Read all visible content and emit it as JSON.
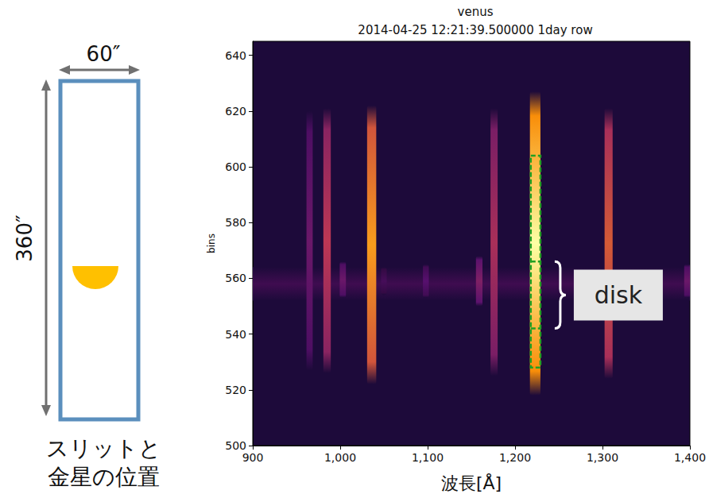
{
  "diagram": {
    "slit_width_label": "60″",
    "slit_height_label": "360″",
    "caption": [
      "スリットと",
      "金星の位置"
    ]
  },
  "chart_data": {
    "type": "heatmap",
    "title": "venus",
    "subtitle": "2014-04-25 12:21:39.500000 1day row",
    "x_label": "波長[Å]",
    "y_label": "bins",
    "xlim": [
      900,
      1400
    ],
    "xticks": [
      900,
      1000,
      1100,
      1200,
      1300,
      1400
    ],
    "ylim": [
      500,
      645
    ],
    "yticks": [
      500,
      520,
      540,
      560,
      580,
      600,
      620,
      640
    ],
    "grid": false,
    "lines": [
      {
        "wavelength": 965,
        "bins": [
          527,
          620
        ],
        "intensity": 0.3
      },
      {
        "wavelength": 985,
        "bins": [
          526,
          621
        ],
        "intensity": 0.5
      },
      {
        "wavelength": 1003,
        "bins": [
          553,
          566
        ],
        "intensity": 0.3
      },
      {
        "wavelength": 1036,
        "bins": [
          522,
          622
        ],
        "intensity": 0.78
      },
      {
        "wavelength": 1050,
        "bins": [
          554,
          564
        ],
        "intensity": 0.2
      },
      {
        "wavelength": 1098,
        "bins": [
          553,
          565
        ],
        "intensity": 0.25
      },
      {
        "wavelength": 1159,
        "bins": [
          550,
          568
        ],
        "intensity": 0.35
      },
      {
        "wavelength": 1176,
        "bins": [
          525,
          621
        ],
        "intensity": 0.45
      },
      {
        "wavelength": 1223,
        "bins": [
          518,
          627
        ],
        "intensity": 1.0
      },
      {
        "wavelength": 1307,
        "bins": [
          524,
          621
        ],
        "intensity": 0.6
      },
      {
        "wavelength": 1397,
        "bins": [
          553,
          565
        ],
        "intensity": 0.3
      }
    ],
    "bands": [
      {
        "bins": [
          552,
          564
        ],
        "intensity": 0.18
      }
    ],
    "region": {
      "wavelength": [
        1218,
        1229
      ],
      "bins": [
        528,
        604
      ]
    },
    "annotation": {
      "text": "disk",
      "bins": [
        542,
        566
      ]
    }
  }
}
